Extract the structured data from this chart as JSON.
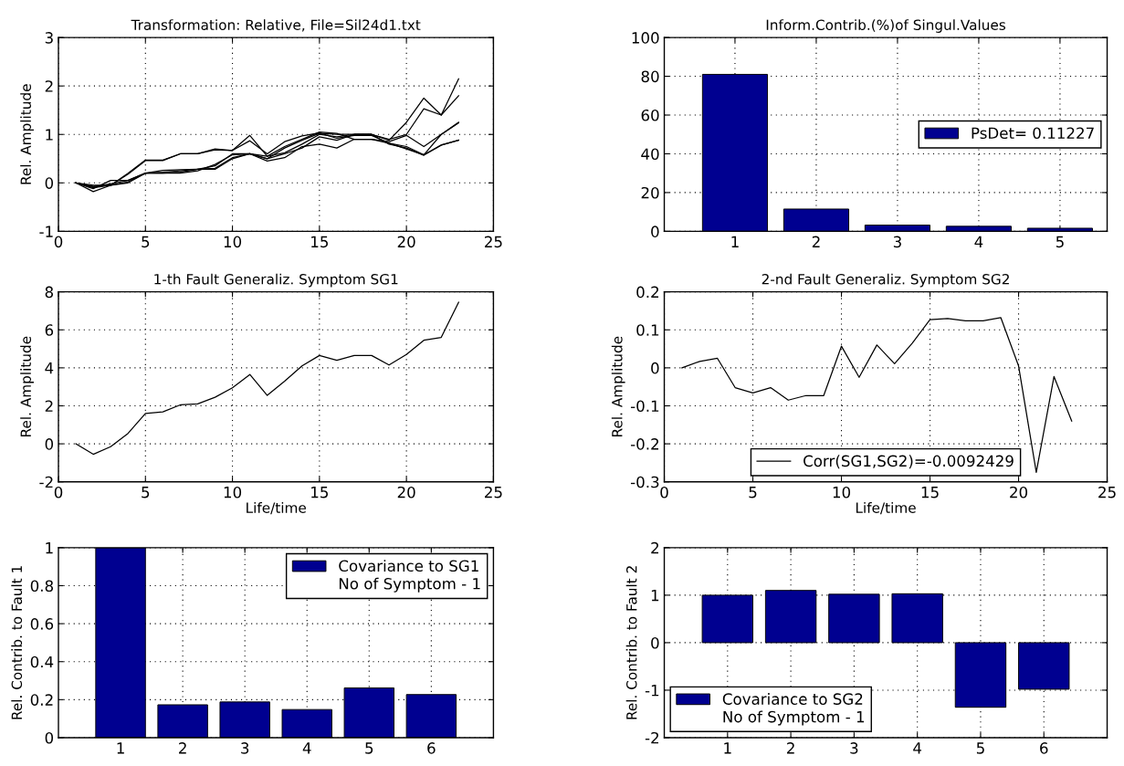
{
  "chart_data": [
    {
      "type": "line",
      "title": "Transformation: Relative, File=Sil24d1.txt",
      "ylabel": "Rel. Amplitude",
      "x": [
        1,
        2,
        3,
        4,
        5,
        6,
        7,
        8,
        9,
        10,
        11,
        12,
        13,
        14,
        15,
        16,
        17,
        18,
        19,
        20,
        21,
        22,
        23
      ],
      "series": [
        {
          "color": "#000000",
          "values": [
            0,
            -0.08,
            -0.02,
            0.05,
            0.2,
            0.2,
            0.22,
            0.28,
            0.3,
            0.52,
            0.6,
            0.5,
            0.72,
            0.88,
            1.02,
            1.0,
            1.0,
            1.0,
            0.88,
            1.25,
            1.75,
            1.4,
            2.15
          ]
        },
        {
          "color": "#000000",
          "values": [
            0,
            -0.1,
            -0.05,
            0.02,
            0.2,
            0.22,
            0.25,
            0.28,
            0.35,
            0.6,
            0.6,
            0.55,
            0.62,
            0.8,
            1.0,
            0.95,
            1.0,
            1.0,
            0.9,
            1.0,
            1.53,
            1.4,
            1.8
          ]
        },
        {
          "color": "#000000",
          "values": [
            0,
            -0.05,
            -0.05,
            0.2,
            0.47,
            0.47,
            0.6,
            0.6,
            0.68,
            0.67,
            0.98,
            0.55,
            0.75,
            0.9,
            1.05,
            1.02,
            0.9,
            0.9,
            0.85,
            0.98,
            0.75,
            1.0,
            1.25
          ]
        },
        {
          "color": "#000000",
          "values": [
            0,
            -0.07,
            -0.05,
            0.18,
            0.46,
            0.46,
            0.6,
            0.6,
            0.7,
            0.67,
            0.87,
            0.6,
            0.85,
            0.97,
            1.03,
            0.92,
            0.98,
            0.98,
            0.82,
            0.75,
            0.58,
            1.0,
            1.24
          ]
        },
        {
          "color": "#000000",
          "values": [
            0,
            -0.18,
            -0.05,
            0.0,
            0.2,
            0.26,
            0.27,
            0.28,
            0.28,
            0.5,
            0.6,
            0.45,
            0.52,
            0.75,
            0.8,
            0.72,
            0.9,
            0.9,
            0.82,
            0.7,
            0.58,
            0.78,
            0.88
          ]
        },
        {
          "color": "#000000",
          "values": [
            0,
            -0.12,
            0.05,
            0.05,
            0.2,
            0.2,
            0.2,
            0.25,
            0.38,
            0.58,
            0.6,
            0.5,
            0.6,
            0.72,
            0.95,
            0.88,
            1.0,
            1.0,
            0.8,
            0.72,
            0.57,
            0.78,
            0.88
          ]
        }
      ],
      "xlim": [
        0,
        25
      ],
      "xticks": [
        0,
        5,
        10,
        15,
        20,
        25
      ],
      "ylim": [
        -1,
        3
      ],
      "yticks": [
        -1,
        0,
        1,
        2,
        3
      ],
      "grid": true
    },
    {
      "type": "bar",
      "title": "Inform.Contrib.(%)of Singul.Values",
      "categories": [
        "1",
        "2",
        "3",
        "4",
        "5"
      ],
      "series": [
        {
          "name": "PsDet= 0.11227",
          "color": "#000090",
          "values": [
            81,
            11.5,
            3.2,
            2.6,
            1.6
          ]
        }
      ],
      "ylim": [
        0,
        100
      ],
      "yticks": [
        0,
        20,
        40,
        60,
        80,
        100
      ],
      "grid": true,
      "legend": "center right"
    },
    {
      "type": "line",
      "title": "1-th Fault Generaliz. Symptom SG1",
      "xlabel": "Life/time",
      "ylabel": "Rel. Amplitude",
      "x": [
        1,
        2,
        3,
        4,
        5,
        6,
        7,
        8,
        9,
        10,
        11,
        12,
        13,
        14,
        15,
        16,
        17,
        18,
        19,
        20,
        21,
        22,
        23
      ],
      "series": [
        {
          "color": "#000000",
          "values": [
            0,
            -0.55,
            -0.15,
            0.55,
            1.6,
            1.68,
            2.05,
            2.1,
            2.45,
            2.95,
            3.65,
            2.55,
            3.3,
            4.1,
            4.65,
            4.4,
            4.65,
            4.65,
            4.15,
            4.7,
            5.45,
            5.6,
            7.45
          ]
        }
      ],
      "xlim": [
        0,
        25
      ],
      "xticks": [
        0,
        5,
        10,
        15,
        20,
        25
      ],
      "ylim": [
        -2,
        8
      ],
      "yticks": [
        -2,
        0,
        2,
        4,
        6,
        8
      ],
      "grid": true
    },
    {
      "type": "line",
      "title": "2-nd Fault Generaliz. Symptom SG2",
      "xlabel": "Life/time",
      "ylabel": "Rel. Amplitude",
      "x": [
        1,
        2,
        3,
        4,
        5,
        6,
        7,
        8,
        9,
        10,
        11,
        12,
        13,
        14,
        15,
        16,
        17,
        18,
        19,
        20,
        21,
        22,
        23
      ],
      "series": [
        {
          "name": "Corr(SG1,SG2)=-0.0092429",
          "color": "#000000",
          "values": [
            0,
            0.017,
            0.025,
            -0.052,
            -0.066,
            -0.052,
            -0.085,
            -0.073,
            -0.073,
            0.057,
            -0.025,
            0.06,
            0.011,
            0.065,
            0.127,
            0.13,
            0.124,
            0.124,
            0.132,
            0.005,
            -0.275,
            -0.023,
            -0.14
          ]
        }
      ],
      "xlim": [
        0,
        25
      ],
      "xticks": [
        0,
        5,
        10,
        15,
        20,
        25
      ],
      "ylim": [
        -0.3,
        0.2
      ],
      "yticks": [
        -0.3,
        -0.2,
        -0.1,
        0,
        0.1,
        0.2
      ],
      "grid": true,
      "legend": "bottom"
    },
    {
      "type": "bar",
      "ylabel": "Rel. Contrib. to Fault 1",
      "categories": [
        "1",
        "2",
        "3",
        "4",
        "5",
        "6"
      ],
      "series": [
        {
          "name": "Covariance to SG1",
          "color": "#000090",
          "values": [
            1.0,
            0.173,
            0.188,
            0.148,
            0.262,
            0.227
          ]
        }
      ],
      "annotations": [
        "No of Symptom - 1"
      ],
      "ylim": [
        0,
        1
      ],
      "yticks": [
        0,
        0.2,
        0.4,
        0.6,
        0.8,
        1
      ],
      "grid": true,
      "legend": "top right"
    },
    {
      "type": "bar",
      "ylabel": "Rel. Contrib. to Fault 2",
      "categories": [
        "1",
        "2",
        "3",
        "4",
        "5",
        "6"
      ],
      "series": [
        {
          "name": "Covariance to SG2",
          "color": "#000090",
          "values": [
            1.0,
            1.1,
            1.02,
            1.03,
            -1.36,
            -0.98
          ]
        }
      ],
      "annotations": [
        "No of Symptom - 1"
      ],
      "ylim": [
        -2,
        2
      ],
      "yticks": [
        -2,
        -1,
        0,
        1,
        2
      ],
      "grid": true,
      "legend": "bottom left"
    }
  ]
}
